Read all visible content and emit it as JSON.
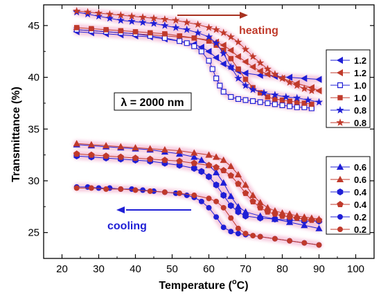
{
  "chart_data": {
    "type": "line",
    "xlabel": "Temperature (°C)",
    "xlabel_main": "Temperature (",
    "xlabel_unit": "o",
    "xlabel_tail": "C)",
    "ylabel": "Transmittance (%)",
    "xlim": [
      15,
      105
    ],
    "ylim": [
      22.5,
      47
    ],
    "x_ticks": [
      20,
      30,
      40,
      50,
      60,
      70,
      80,
      90,
      100
    ],
    "y_ticks": [
      25,
      30,
      35,
      40,
      45
    ],
    "annotations": {
      "heating": "heating",
      "cooling": "cooling",
      "wavelength": "λ = 2000 nm"
    },
    "colors": {
      "blue": "#1f1fd6",
      "red": "#c03a2b",
      "heating_arrow": "#a83220",
      "cooling_arrow": "#1f1fd6",
      "glow": "#f4b7d2"
    },
    "legend_groups": [
      {
        "placement": "right-upper",
        "labels": [
          "1.2",
          "1.2",
          "1.0",
          "1.0",
          "0.8",
          "0.8"
        ]
      },
      {
        "placement": "right-lower",
        "labels": [
          "0.6",
          "0.6",
          "0.4",
          "0.4",
          "0.2",
          "0.2"
        ]
      }
    ],
    "series": [
      {
        "name": "1.2",
        "mode": "cooling",
        "marker": "triangle-left",
        "color": "blue",
        "filled": true,
        "x": [
          24,
          28,
          32,
          36,
          40,
          44,
          48,
          52,
          56,
          58,
          60,
          62,
          64,
          66,
          68,
          70,
          74,
          78,
          82,
          86,
          90
        ],
        "y": [
          44.4,
          44.3,
          44.2,
          44.1,
          44.0,
          43.9,
          43.7,
          43.5,
          43.2,
          42.9,
          42.5,
          41.9,
          41.3,
          40.9,
          40.6,
          40.4,
          40.2,
          40.1,
          40.0,
          39.9,
          39.8
        ]
      },
      {
        "name": "1.2",
        "mode": "heating",
        "marker": "triangle-left",
        "color": "red",
        "filled": true,
        "x": [
          24,
          28,
          32,
          36,
          40,
          44,
          48,
          52,
          56,
          60,
          62,
          64,
          66,
          68,
          70,
          72,
          74,
          76,
          80,
          84,
          88,
          90
        ],
        "y": [
          44.6,
          44.5,
          44.4,
          44.3,
          44.2,
          44.1,
          44.0,
          43.9,
          43.8,
          43.6,
          43.4,
          43.1,
          42.6,
          42.0,
          41.5,
          41.0,
          40.6,
          40.3,
          39.9,
          39.4,
          39.0,
          38.7
        ]
      },
      {
        "name": "1.0",
        "mode": "cooling",
        "marker": "square",
        "color": "blue",
        "filled": false,
        "x": [
          24,
          28,
          32,
          36,
          40,
          44,
          48,
          52,
          54,
          56,
          58,
          60,
          61,
          62,
          63,
          64,
          66,
          68,
          70,
          72,
          74,
          76,
          78,
          80,
          82,
          84,
          86,
          88
        ],
        "y": [
          44.6,
          44.5,
          44.4,
          44.3,
          44.2,
          44.0,
          43.8,
          43.5,
          43.3,
          43.0,
          42.5,
          41.6,
          40.8,
          39.9,
          39.2,
          38.6,
          38.1,
          37.9,
          37.8,
          37.7,
          37.6,
          37.5,
          37.4,
          37.3,
          37.2,
          37.1,
          37.1,
          37.0
        ]
      },
      {
        "name": "1.0",
        "mode": "heating",
        "marker": "square",
        "color": "red",
        "filled": true,
        "x": [
          24,
          28,
          32,
          36,
          40,
          44,
          48,
          52,
          56,
          60,
          62,
          64,
          66,
          68,
          70,
          72,
          74,
          76,
          78,
          80,
          82,
          84,
          86,
          88
        ],
        "y": [
          44.8,
          44.7,
          44.6,
          44.5,
          44.4,
          44.3,
          44.2,
          44.0,
          43.8,
          43.5,
          43.1,
          42.6,
          41.8,
          40.8,
          39.8,
          39.0,
          38.5,
          38.1,
          37.9,
          37.8,
          37.7,
          37.6,
          37.5,
          37.4
        ]
      },
      {
        "name": "0.8",
        "mode": "cooling",
        "marker": "star",
        "color": "blue",
        "filled": true,
        "x": [
          24,
          27,
          30,
          33,
          36,
          39,
          42,
          45,
          48,
          51,
          54,
          57,
          60,
          62,
          64,
          66,
          68,
          70,
          72,
          75,
          78,
          81,
          84,
          87,
          90
        ],
        "y": [
          46.3,
          46.1,
          45.9,
          45.7,
          45.5,
          45.4,
          45.3,
          45.2,
          45.0,
          44.8,
          44.6,
          44.3,
          43.9,
          43.3,
          42.3,
          41.0,
          39.9,
          39.2,
          38.8,
          38.5,
          38.3,
          38.1,
          38.0,
          37.8,
          37.6
        ]
      },
      {
        "name": "0.8",
        "mode": "heating",
        "marker": "star",
        "color": "red",
        "filled": true,
        "x": [
          24,
          27,
          30,
          33,
          36,
          39,
          42,
          45,
          48,
          51,
          54,
          57,
          60,
          62,
          64,
          66,
          68,
          70,
          72,
          74,
          76,
          78,
          80,
          82,
          84,
          86,
          88
        ],
        "y": [
          46.4,
          46.3,
          46.2,
          46.1,
          46.0,
          45.9,
          45.8,
          45.7,
          45.6,
          45.5,
          45.3,
          45.1,
          44.8,
          44.6,
          44.3,
          43.9,
          43.4,
          42.7,
          42.0,
          41.4,
          40.8,
          40.3,
          39.9,
          39.5,
          39.2,
          38.9,
          38.7
        ]
      },
      {
        "name": "0.6",
        "mode": "cooling",
        "marker": "triangle-up",
        "color": "blue",
        "filled": true,
        "x": [
          24,
          28,
          32,
          36,
          40,
          44,
          48,
          52,
          56,
          58,
          60,
          62,
          64,
          66,
          68,
          70,
          74,
          78,
          82,
          86,
          90
        ],
        "y": [
          33.5,
          33.4,
          33.3,
          33.2,
          33.1,
          33.0,
          32.8,
          32.6,
          32.3,
          32.0,
          31.5,
          30.8,
          29.8,
          28.5,
          27.5,
          27.0,
          26.6,
          26.3,
          26.0,
          25.7,
          25.4
        ]
      },
      {
        "name": "0.6",
        "mode": "heating",
        "marker": "triangle-up",
        "color": "red",
        "filled": true,
        "x": [
          24,
          28,
          32,
          36,
          40,
          44,
          48,
          52,
          56,
          60,
          62,
          64,
          66,
          68,
          70,
          72,
          74,
          76,
          78,
          80,
          82,
          84,
          86,
          88,
          90
        ],
        "y": [
          33.6,
          33.5,
          33.4,
          33.3,
          33.2,
          33.1,
          33.0,
          32.9,
          32.7,
          32.5,
          32.3,
          32.0,
          31.4,
          30.6,
          29.6,
          28.6,
          27.9,
          27.4,
          27.1,
          26.9,
          26.8,
          26.6,
          26.5,
          26.4,
          26.3
        ]
      },
      {
        "name": "0.4",
        "mode": "cooling",
        "marker": "hexagon",
        "color": "blue",
        "filled": true,
        "x": [
          24,
          28,
          32,
          36,
          40,
          44,
          48,
          52,
          56,
          58,
          60,
          62,
          64,
          66,
          68,
          70,
          74,
          78,
          82,
          86,
          90
        ],
        "y": [
          32.4,
          32.3,
          32.2,
          32.1,
          32.0,
          31.9,
          31.7,
          31.5,
          31.2,
          30.9,
          30.4,
          29.6,
          28.6,
          27.6,
          27.0,
          26.6,
          26.4,
          26.3,
          26.2,
          26.1,
          26.1
        ]
      },
      {
        "name": "0.4",
        "mode": "heating",
        "marker": "pentagon",
        "color": "red",
        "filled": true,
        "x": [
          24,
          28,
          32,
          36,
          40,
          44,
          48,
          52,
          56,
          60,
          62,
          64,
          66,
          68,
          70,
          72,
          74,
          76,
          78,
          80,
          82,
          84,
          86,
          88,
          90
        ],
        "y": [
          32.6,
          32.5,
          32.4,
          32.3,
          32.2,
          32.1,
          32.0,
          31.9,
          31.7,
          31.5,
          31.3,
          31.0,
          30.5,
          29.7,
          28.8,
          28.0,
          27.4,
          27.0,
          26.8,
          26.6,
          26.5,
          26.4,
          26.3,
          26.2,
          26.2
        ]
      },
      {
        "name": "0.2",
        "mode": "cooling",
        "marker": "circle",
        "color": "blue",
        "filled": true,
        "x": [
          24,
          27,
          30,
          33,
          36,
          39,
          42,
          45,
          48,
          51,
          54,
          56,
          58,
          60,
          62,
          64,
          66,
          68,
          70,
          74,
          78,
          82,
          86,
          90
        ],
        "y": [
          29.4,
          29.4,
          29.3,
          29.3,
          29.2,
          29.2,
          29.1,
          29.0,
          28.9,
          28.8,
          28.6,
          28.4,
          28.0,
          27.4,
          26.5,
          25.5,
          25.1,
          24.9,
          24.8,
          24.6,
          24.4,
          24.2,
          24.0,
          23.8
        ]
      },
      {
        "name": "0.2",
        "mode": "heating",
        "marker": "circle",
        "color": "red",
        "filled": true,
        "x": [
          24,
          28,
          32,
          36,
          40,
          44,
          48,
          52,
          56,
          60,
          62,
          64,
          66,
          68,
          70,
          72,
          74,
          78,
          82,
          86,
          90
        ],
        "y": [
          29.3,
          29.3,
          29.2,
          29.2,
          29.1,
          29.0,
          28.9,
          28.8,
          28.6,
          28.3,
          28.0,
          27.4,
          26.4,
          25.4,
          24.9,
          24.7,
          24.6,
          24.4,
          24.2,
          24.0,
          23.8
        ]
      }
    ]
  }
}
